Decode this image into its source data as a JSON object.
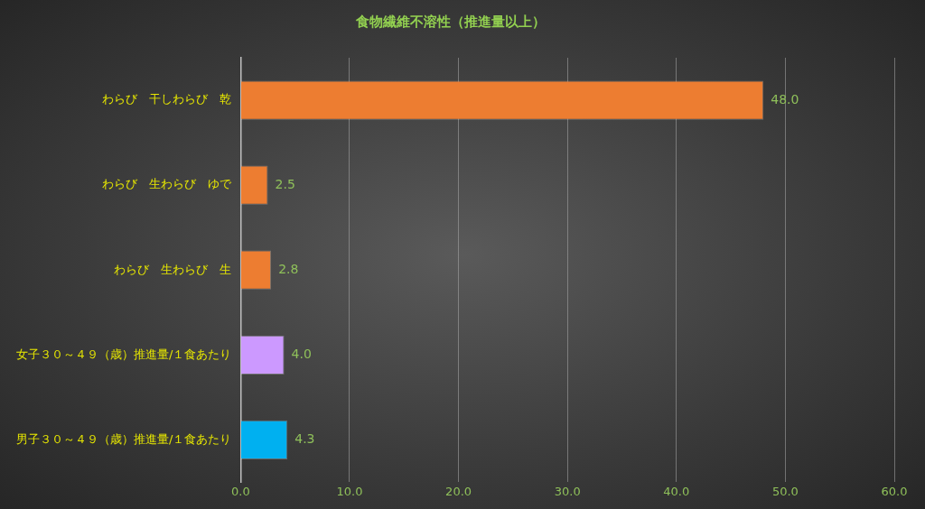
{
  "chart_data": {
    "type": "bar",
    "orientation": "horizontal",
    "title": "食物繊維不溶性（推進量以上）",
    "categories": [
      "わらび　干しわらび　乾",
      "わらび　生わらび　ゆで",
      "わらび　生わらび　生",
      "女子３０～４９（歳）推進量/１食あたり",
      "男子３０～４９（歳）推進量/１食あたり"
    ],
    "values": [
      48.0,
      2.5,
      2.8,
      4.0,
      4.3
    ],
    "colors": [
      "#ed7d31",
      "#ed7d31",
      "#ed7d31",
      "#cc99ff",
      "#00b0f0"
    ],
    "value_labels": [
      "48.0",
      "2.5",
      "2.8",
      "4.0",
      "4.3"
    ],
    "xlim": [
      0,
      60
    ],
    "xticks": [
      {
        "value": 0,
        "label": "0.0"
      },
      {
        "value": 10,
        "label": "10.0"
      },
      {
        "value": 20,
        "label": "20.0"
      },
      {
        "value": 30,
        "label": "30.0"
      },
      {
        "value": 40,
        "label": "40.0"
      },
      {
        "value": 50,
        "label": "50.0"
      },
      {
        "value": 60,
        "label": "60.0"
      }
    ],
    "grid": "x",
    "legend": false
  }
}
